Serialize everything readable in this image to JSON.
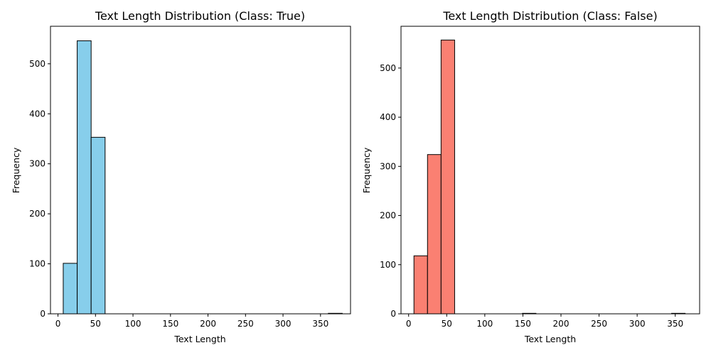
{
  "chart_data": [
    {
      "type": "bar",
      "title": "Text Length Distribution (Class: True)",
      "xlabel": "Text Length",
      "ylabel": "Frequency",
      "xlim": [
        -10,
        390
      ],
      "ylim": [
        0,
        575
      ],
      "xticks": [
        0,
        50,
        100,
        150,
        200,
        250,
        300,
        350
      ],
      "yticks": [
        0,
        100,
        200,
        300,
        400,
        500
      ],
      "color": "#87ceeb",
      "edgecolor": "#000000",
      "bin_edges": [
        7,
        25.6,
        44.2,
        62.8,
        81.4,
        100,
        118.6,
        137.2,
        155.8,
        174.4,
        193,
        211.6,
        230.2,
        248.8,
        267.4,
        286,
        304.6,
        323.2,
        341.8,
        360.4,
        379
      ],
      "values": [
        101,
        546,
        353,
        0,
        0,
        0,
        0,
        0,
        0,
        0,
        0,
        0,
        0,
        0,
        0,
        0,
        0,
        0,
        0,
        1
      ],
      "grid": false
    },
    {
      "type": "bar",
      "title": "Text Length Distribution (Class: False)",
      "xlabel": "Text Length",
      "ylabel": "Frequency",
      "xlim": [
        -10,
        382
      ],
      "ylim": [
        0,
        585
      ],
      "xticks": [
        0,
        50,
        100,
        150,
        200,
        250,
        300,
        350
      ],
      "yticks": [
        0,
        100,
        200,
        300,
        400,
        500
      ],
      "color": "#fa8072",
      "edgecolor": "#000000",
      "bin_edges": [
        7,
        24.8,
        42.6,
        60.4,
        78.2,
        96,
        113.8,
        131.6,
        149.4,
        167.2,
        185,
        202.8,
        220.6,
        238.4,
        256.2,
        274,
        291.8,
        309.6,
        327.4,
        345.2,
        363
      ],
      "values": [
        118,
        324,
        557,
        0,
        0,
        0,
        0,
        0,
        1,
        0,
        0,
        0,
        0,
        0,
        0,
        0,
        0,
        0,
        0,
        1
      ],
      "grid": false
    }
  ]
}
